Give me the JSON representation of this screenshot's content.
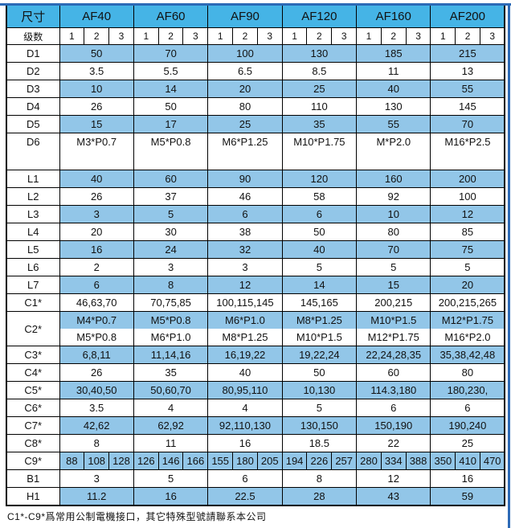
{
  "colors": {
    "accent_line": "#2c6ab6",
    "header_bg": "#45b4e6",
    "row_blue": "#92c6e8",
    "border": "#000000"
  },
  "table": {
    "size_header": "尺寸",
    "stage_label": "级数",
    "stage_cols": [
      "1",
      "2",
      "3"
    ],
    "groups": [
      "AF40",
      "AF60",
      "AF90",
      "AF120",
      "AF160",
      "AF200"
    ],
    "rows": [
      {
        "label": "D1",
        "shade": "blue",
        "values": [
          "50",
          "70",
          "100",
          "130",
          "185",
          "215"
        ]
      },
      {
        "label": "D2",
        "shade": "white",
        "values": [
          "3.5",
          "5.5",
          "6.5",
          "8.5",
          "11",
          "13"
        ]
      },
      {
        "label": "D3",
        "shade": "blue",
        "values": [
          "10",
          "14",
          "20",
          "25",
          "40",
          "55"
        ]
      },
      {
        "label": "D4",
        "shade": "white",
        "values": [
          "26",
          "50",
          "80",
          "110",
          "130",
          "145"
        ]
      },
      {
        "label": "D5",
        "shade": "blue",
        "values": [
          "15",
          "17",
          "25",
          "35",
          "55",
          "70"
        ]
      },
      {
        "label": "D6",
        "shade": "white",
        "tall": true,
        "values": [
          "M3*P0.7",
          "M5*P0.8",
          "M6*P1.25",
          "M10*P1.75",
          "M*P2.0",
          "M16*P2.5"
        ]
      },
      {
        "label": "L1",
        "shade": "blue",
        "values": [
          "40",
          "60",
          "90",
          "120",
          "160",
          "200"
        ]
      },
      {
        "label": "L2",
        "shade": "white",
        "values": [
          "26",
          "37",
          "46",
          "58",
          "92",
          "100"
        ]
      },
      {
        "label": "L3",
        "shade": "blue",
        "values": [
          "3",
          "5",
          "6",
          "6",
          "10",
          "12"
        ]
      },
      {
        "label": "L4",
        "shade": "white",
        "values": [
          "20",
          "30",
          "38",
          "50",
          "80",
          "85"
        ]
      },
      {
        "label": "L5",
        "shade": "blue",
        "values": [
          "16",
          "24",
          "32",
          "40",
          "70",
          "75"
        ]
      },
      {
        "label": "L6",
        "shade": "white",
        "values": [
          "2",
          "3",
          "3",
          "5",
          "5",
          "5"
        ]
      },
      {
        "label": "L7",
        "shade": "blue",
        "values": [
          "6",
          "8",
          "12",
          "14",
          "15",
          "20"
        ]
      },
      {
        "label": "C1*",
        "shade": "white",
        "values": [
          "46,63,70",
          "70,75,85",
          "100,115,145",
          "145,165",
          "200,215",
          "200,215,265"
        ]
      },
      {
        "label": "C2*",
        "type": "double",
        "values_top": [
          "M4*P0.7",
          "M5*P0.8",
          "M6*P1.0",
          "M8*P1.25",
          "M10*P1.5",
          "M12*P1.75"
        ],
        "values_bottom": [
          "M5*P0.8",
          "M6*P1.0",
          "M8*P1.25",
          "M10*P1.5",
          "M12*P1.75",
          "M16*P2.0"
        ]
      },
      {
        "label": "C3*",
        "shade": "blue",
        "values": [
          "6,8,11",
          "11,14,16",
          "16,19,22",
          "19,22,24",
          "22,24,28,35",
          "35,38,42,48"
        ]
      },
      {
        "label": "C4*",
        "shade": "white",
        "values": [
          "26",
          "35",
          "40",
          "50",
          "60",
          "80"
        ]
      },
      {
        "label": "C5*",
        "shade": "blue",
        "values": [
          "30,40,50",
          "50,60,70",
          "80,95,110",
          "10,130",
          "114.3,180",
          "180,230,"
        ]
      },
      {
        "label": "C6*",
        "shade": "white",
        "values": [
          "3.5",
          "4",
          "4",
          "5",
          "6",
          "6"
        ]
      },
      {
        "label": "C7*",
        "shade": "blue",
        "values": [
          "42,62",
          "62,92",
          "92,110,130",
          "130,150",
          "150,190",
          "190,240"
        ]
      },
      {
        "label": "C8*",
        "shade": "white",
        "values": [
          "8",
          "11",
          "16",
          "18.5",
          "22",
          "25"
        ]
      },
      {
        "label": "C9*",
        "type": "split",
        "shade": "blue",
        "values": [
          [
            "88",
            "108",
            "128"
          ],
          [
            "126",
            "146",
            "166"
          ],
          [
            "155",
            "180",
            "205"
          ],
          [
            "194",
            "226",
            "257"
          ],
          [
            "280",
            "334",
            "388"
          ],
          [
            "350",
            "410",
            "470"
          ]
        ]
      },
      {
        "label": "B1",
        "shade": "white",
        "values": [
          "3",
          "5",
          "6",
          "8",
          "12",
          "16"
        ]
      },
      {
        "label": "H1",
        "shade": "blue",
        "values": [
          "11.2",
          "16",
          "22.5",
          "28",
          "43",
          "59"
        ]
      }
    ],
    "footnote": "C1*-C9*爲常用公制電機接口，其它特殊型號請聯系本公司"
  }
}
